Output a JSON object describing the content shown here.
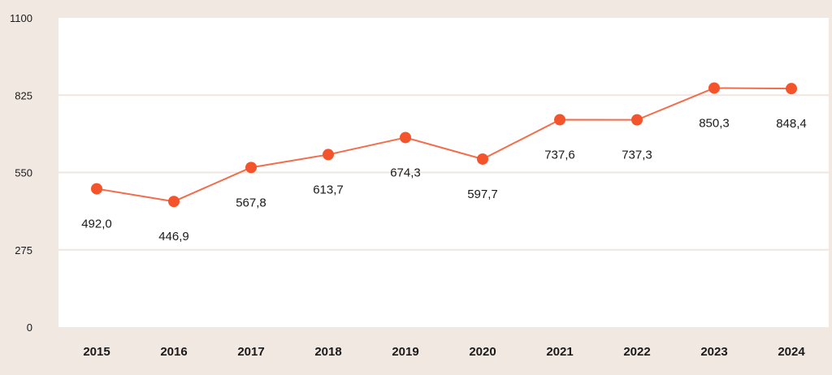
{
  "chart_data": {
    "type": "line",
    "categories": [
      "2015",
      "2016",
      "2017",
      "2018",
      "2019",
      "2020",
      "2021",
      "2022",
      "2023",
      "2024"
    ],
    "values": [
      492.0,
      446.9,
      567.8,
      613.7,
      674.3,
      597.7,
      737.6,
      737.3,
      850.3,
      848.4
    ],
    "data_labels": [
      "492,0",
      "446,9",
      "567,8",
      "613,7",
      "674,3",
      "597,7",
      "737,6",
      "737,3",
      "850,3",
      "848,4"
    ],
    "title": "",
    "xlabel": "",
    "ylabel": "",
    "ylim": [
      0,
      1100
    ],
    "yticks": [
      0,
      275,
      550,
      825,
      1100
    ],
    "grid": true,
    "legend": "none",
    "colors": {
      "line": "#f26d4b",
      "marker": "#f4542b",
      "plot_background": "#ffffff",
      "page_background": "#f1e8e2",
      "gridline": "#efe6df"
    }
  }
}
